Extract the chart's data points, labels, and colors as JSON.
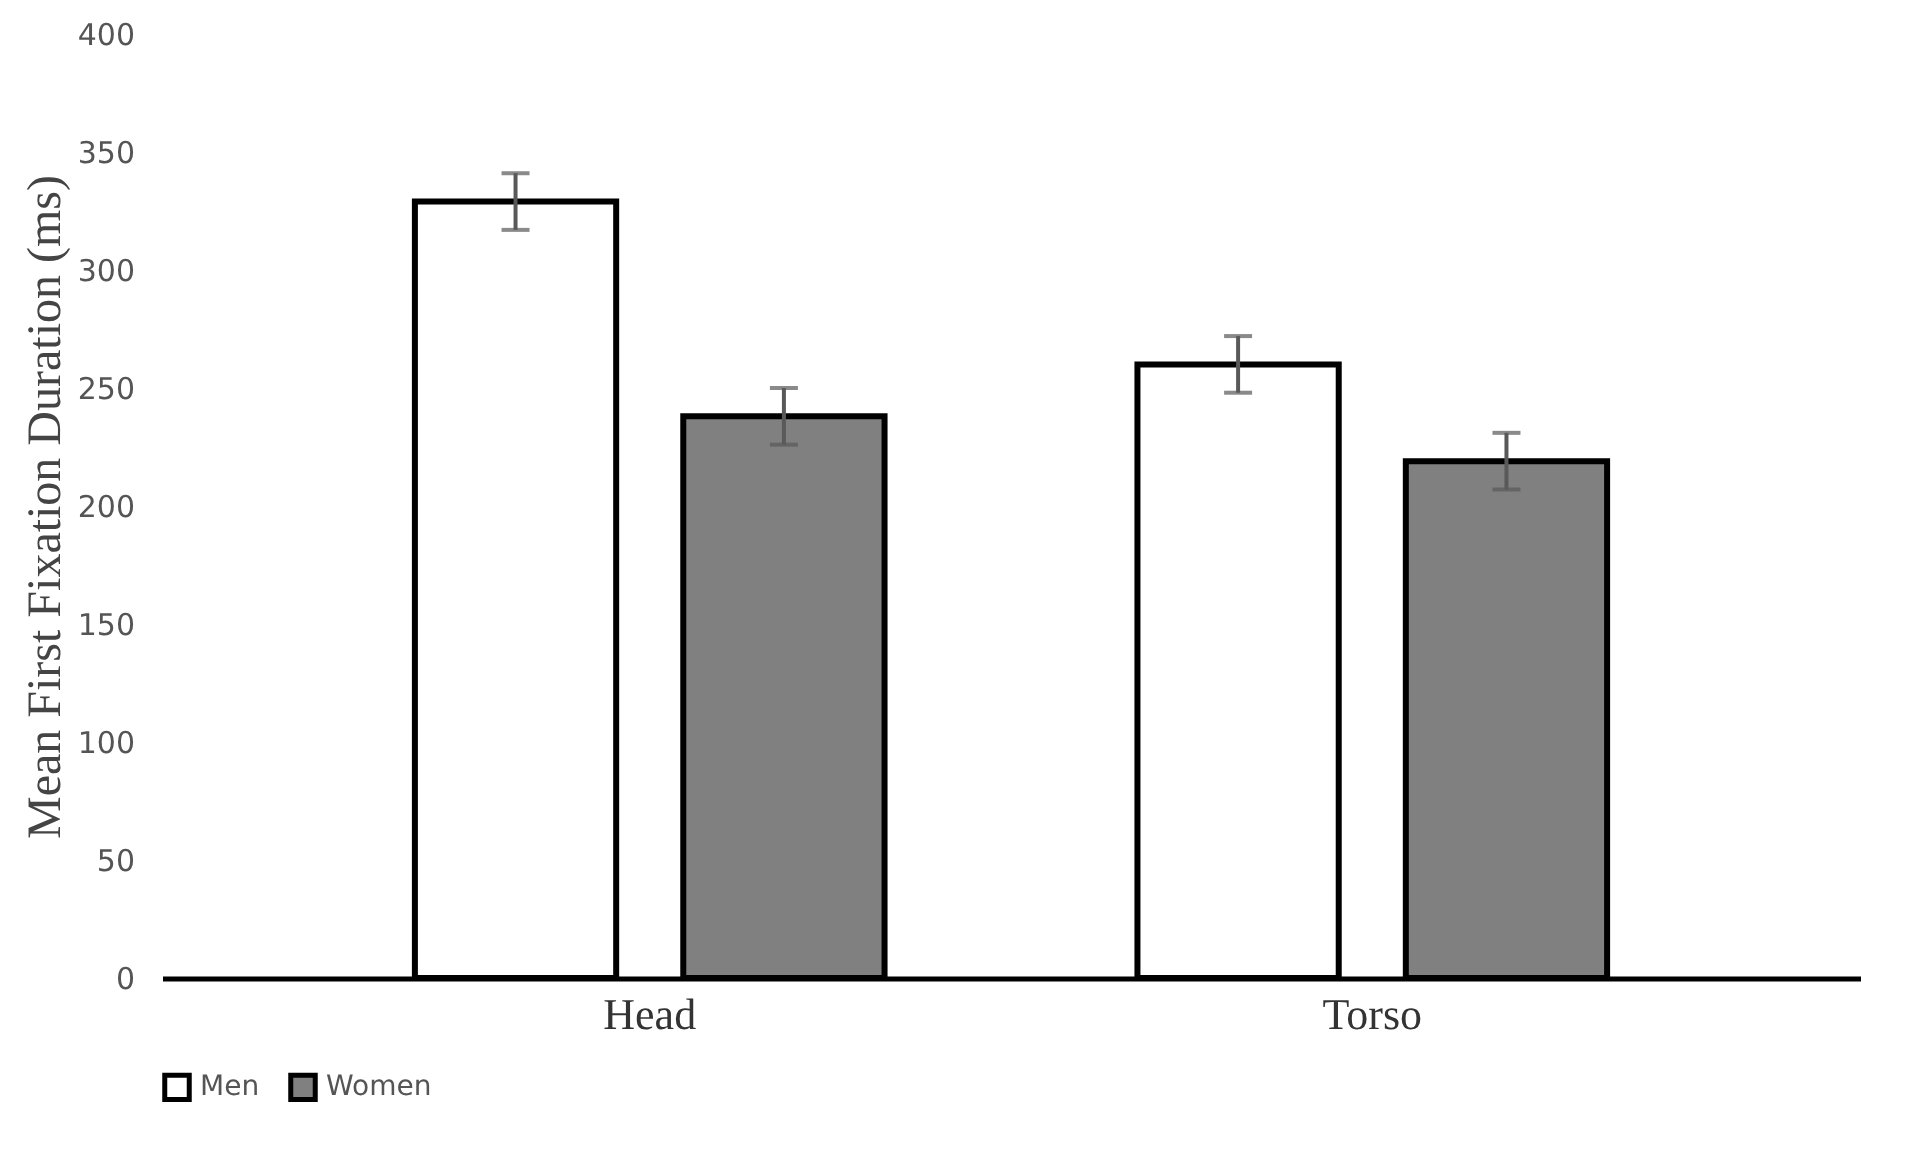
{
  "chart_data": {
    "type": "bar",
    "ylabel": "Mean First Fixation Duration (ms)",
    "categories": [
      "Head",
      "Torso"
    ],
    "series": [
      {
        "name": "Men",
        "color": "#ffffff",
        "values": [
          329,
          260
        ],
        "errors": [
          12,
          12
        ]
      },
      {
        "name": "Women",
        "color": "#808080",
        "values": [
          238,
          219
        ],
        "errors": [
          12,
          12
        ]
      }
    ],
    "ylim": [
      0,
      400
    ],
    "yticks": [
      0,
      50,
      100,
      150,
      200,
      250,
      300,
      350,
      400
    ],
    "grid": false,
    "legend": "bottom"
  }
}
